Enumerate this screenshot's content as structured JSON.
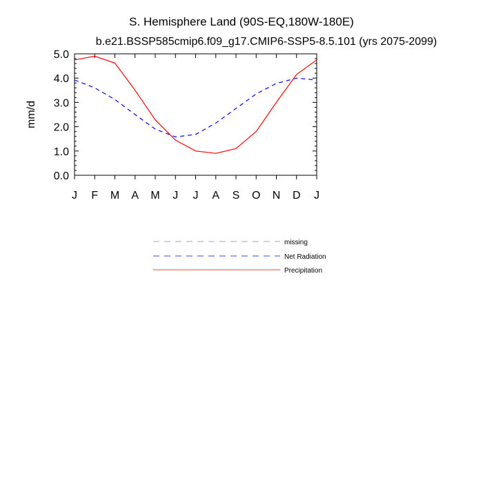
{
  "chart_data": {
    "type": "line",
    "title": "S. Hemisphere Land (90S-EQ,180W-180E)",
    "subtitle": "b.e21.BSSP585cmip6.f09_g17.CMIP6-SSP5-8.5.101 (yrs 2075-2099)",
    "xlabel": "",
    "ylabel": "mm/d",
    "categories": [
      "J",
      "F",
      "M",
      "A",
      "M",
      "J",
      "J",
      "A",
      "S",
      "O",
      "N",
      "D",
      "J"
    ],
    "ylim": [
      0,
      5
    ],
    "yticks": [
      "0.0",
      "1.0",
      "2.0",
      "3.0",
      "4.0",
      "5.0"
    ],
    "grid": false,
    "legend_position": "below",
    "series": [
      {
        "name": "Net Radiation",
        "color": "#0000ff",
        "dash": true,
        "values": [
          3.92,
          3.6,
          3.12,
          2.5,
          1.9,
          1.58,
          1.68,
          2.15,
          2.75,
          3.35,
          3.78,
          4.0,
          3.92
        ]
      },
      {
        "name": "Precipitation",
        "color": "#ff0000",
        "dash": false,
        "values": [
          4.75,
          4.9,
          4.62,
          3.5,
          2.28,
          1.45,
          1.0,
          0.9,
          1.1,
          1.8,
          3.0,
          4.15,
          4.75
        ]
      }
    ],
    "legend": [
      {
        "name": "missing",
        "color": "#888888",
        "dash": true
      },
      {
        "name": "Net Radiation",
        "color": "#0000ff",
        "dash": true
      },
      {
        "name": "Precipitation",
        "color": "#ff0000",
        "dash": false
      }
    ]
  }
}
